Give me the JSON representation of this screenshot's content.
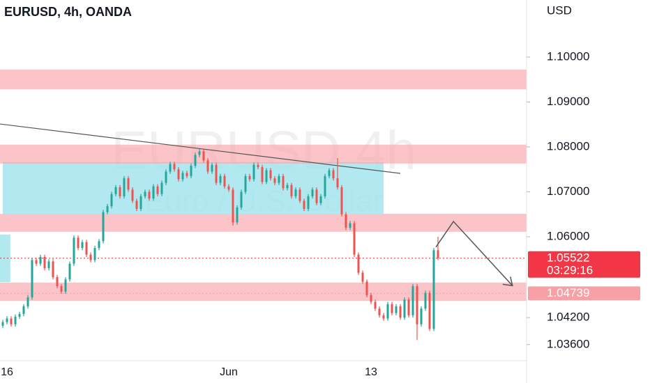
{
  "chart_data": {
    "type": "candlestick",
    "title": "EURUSD, 4h, OANDA",
    "y_label": "USD",
    "watermark": [
      "EURUSD 4h",
      "Euro / U.S. Dollar"
    ],
    "categories": [
      null,
      "16",
      null,
      null,
      null,
      null,
      null,
      null,
      null,
      null,
      null,
      null,
      null,
      null,
      null,
      null,
      null,
      null,
      null,
      null,
      null,
      null,
      null,
      null,
      null,
      null,
      null,
      null,
      null,
      null,
      null,
      null,
      null,
      null,
      null,
      null,
      null,
      null,
      null,
      null,
      null,
      null,
      null,
      null,
      null,
      null,
      null,
      null,
      null,
      null,
      null,
      null,
      null,
      null,
      "Jun",
      null,
      null,
      null,
      null,
      null,
      null,
      null,
      null,
      null,
      null,
      null,
      null,
      null,
      null,
      null,
      null,
      null,
      null,
      null,
      null,
      null,
      null,
      null,
      null,
      null,
      null,
      null,
      null,
      null,
      null,
      null,
      null,
      null,
      "13",
      null,
      null,
      null,
      null,
      null,
      null,
      null,
      null,
      null,
      null,
      null,
      null,
      null,
      null,
      null,
      null
    ],
    "open": [
      1.0402,
      1.041,
      1.0418,
      1.0405,
      1.0422,
      1.0428,
      1.0445,
      1.0465,
      1.0548,
      1.054,
      1.0555,
      1.053,
      1.0545,
      1.051,
      1.049,
      1.0478,
      1.0505,
      1.054,
      1.0598,
      1.0575,
      1.0588,
      1.056,
      1.0548,
      1.0575,
      1.059,
      1.0655,
      1.0668,
      1.0695,
      1.071,
      1.069,
      1.073,
      1.0705,
      1.068,
      1.0662,
      1.069,
      1.07,
      1.0685,
      1.0712,
      1.0695,
      1.072,
      1.0745,
      1.0762,
      1.075,
      1.0728,
      1.0742,
      1.0735,
      1.0758,
      1.0782,
      1.079,
      1.077,
      1.0745,
      1.076,
      1.072,
      1.0735,
      1.0712,
      1.0705,
      1.0632,
      1.0665,
      1.07,
      1.0735,
      1.0728,
      1.076,
      1.0755,
      1.0722,
      1.0748,
      1.073,
      1.072,
      1.0735,
      1.0708,
      1.0715,
      1.069,
      1.0705,
      1.068,
      1.0662,
      1.069,
      1.0705,
      1.0675,
      1.069,
      1.0735,
      1.0748,
      1.073,
      1.071,
      1.065,
      1.062,
      1.063,
      1.056,
      1.052,
      1.05,
      1.047,
      1.0455,
      1.044,
      1.0425,
      1.0418,
      1.045,
      1.043,
      1.0445,
      1.042,
      1.046,
      1.0425,
      1.049,
      1.0405,
      1.044,
      1.0475,
      1.0395,
      1.057
    ],
    "high": [
      1.0415,
      1.0423,
      1.0423,
      1.0427,
      1.0433,
      1.045,
      1.047,
      1.0553,
      1.0553,
      1.056,
      1.056,
      1.055,
      1.055,
      1.0515,
      1.0495,
      1.051,
      1.0545,
      1.0603,
      1.0603,
      1.0593,
      1.0593,
      1.0565,
      1.058,
      1.0595,
      1.066,
      1.0673,
      1.07,
      1.0715,
      1.0715,
      1.0735,
      1.0735,
      1.071,
      1.0685,
      1.0695,
      1.0705,
      1.0705,
      1.0717,
      1.0717,
      1.0725,
      1.075,
      1.0767,
      1.0767,
      1.0755,
      1.0747,
      1.0747,
      1.0763,
      1.0787,
      1.0795,
      1.0795,
      1.0775,
      1.0765,
      1.0765,
      1.074,
      1.074,
      1.0717,
      1.071,
      1.067,
      1.0705,
      1.074,
      1.074,
      1.0765,
      1.0765,
      1.076,
      1.0753,
      1.0753,
      1.0735,
      1.074,
      1.074,
      1.072,
      1.072,
      1.071,
      1.071,
      1.0685,
      1.0695,
      1.071,
      1.071,
      1.0695,
      1.074,
      1.0753,
      1.0753,
      1.0775,
      1.0715,
      1.0655,
      1.0635,
      1.0635,
      1.0565,
      1.0525,
      1.0505,
      1.0475,
      1.046,
      1.0445,
      1.043,
      1.0455,
      1.0455,
      1.045,
      1.045,
      1.0465,
      1.0465,
      1.0495,
      1.0495,
      1.0445,
      1.048,
      1.048,
      1.0575,
      1.06
    ],
    "low": [
      1.0397,
      1.0405,
      1.04,
      1.04,
      1.0417,
      1.0423,
      1.044,
      1.046,
      1.0535,
      1.0535,
      1.0525,
      1.0525,
      1.0505,
      1.0485,
      1.0473,
      1.0473,
      1.05,
      1.0535,
      1.057,
      1.057,
      1.0555,
      1.0543,
      1.0543,
      1.057,
      1.0585,
      1.065,
      1.0663,
      1.069,
      1.0685,
      1.0685,
      1.07,
      1.0675,
      1.0657,
      1.0657,
      1.0685,
      1.068,
      1.068,
      1.069,
      1.069,
      1.0715,
      1.074,
      1.0745,
      1.0723,
      1.0723,
      1.073,
      1.073,
      1.0753,
      1.0777,
      1.0765,
      1.074,
      1.074,
      1.0715,
      1.0715,
      1.0707,
      1.07,
      1.0625,
      1.0627,
      1.066,
      1.0695,
      1.0723,
      1.0723,
      1.075,
      1.0717,
      1.0717,
      1.0725,
      1.0715,
      1.0715,
      1.0703,
      1.0703,
      1.0685,
      1.0685,
      1.0675,
      1.0657,
      1.0657,
      1.0685,
      1.067,
      1.067,
      1.0685,
      1.073,
      1.0725,
      1.0705,
      1.0645,
      1.0615,
      1.0615,
      1.0555,
      1.0515,
      1.0495,
      1.0465,
      1.045,
      1.0435,
      1.042,
      1.0413,
      1.0413,
      1.0425,
      1.0425,
      1.0415,
      1.0415,
      1.042,
      1.042,
      1.037,
      1.04,
      1.0435,
      1.039,
      1.039,
      1.0548
    ],
    "close": [
      1.041,
      1.0418,
      1.0405,
      1.0422,
      1.0428,
      1.0445,
      1.0465,
      1.0548,
      1.054,
      1.0555,
      1.053,
      1.0545,
      1.051,
      1.049,
      1.0478,
      1.0505,
      1.054,
      1.0598,
      1.0575,
      1.0588,
      1.056,
      1.0548,
      1.0575,
      1.059,
      1.0655,
      1.0668,
      1.0695,
      1.071,
      1.069,
      1.073,
      1.0705,
      1.068,
      1.0662,
      1.069,
      1.07,
      1.0685,
      1.0712,
      1.0695,
      1.072,
      1.0745,
      1.0762,
      1.075,
      1.0728,
      1.0742,
      1.0735,
      1.0758,
      1.0782,
      1.079,
      1.077,
      1.0745,
      1.076,
      1.072,
      1.0735,
      1.0712,
      1.0705,
      1.0632,
      1.0665,
      1.07,
      1.0735,
      1.0728,
      1.076,
      1.0755,
      1.0722,
      1.0748,
      1.073,
      1.072,
      1.0735,
      1.0708,
      1.0715,
      1.069,
      1.0705,
      1.068,
      1.0662,
      1.069,
      1.0705,
      1.0675,
      1.069,
      1.0735,
      1.0748,
      1.073,
      1.071,
      1.065,
      1.062,
      1.063,
      1.056,
      1.052,
      1.05,
      1.047,
      1.0455,
      1.044,
      1.0425,
      1.0418,
      1.045,
      1.043,
      1.0445,
      1.042,
      1.046,
      1.0425,
      1.049,
      1.0405,
      1.044,
      1.0475,
      1.0395,
      1.057,
      1.05522
    ],
    "up_color": "#26a69a",
    "down_color": "#ef5350",
    "ylim": [
      1.0324,
      1.1127
    ],
    "yticks": [
      {
        "value": 1.1,
        "label": "1.10000"
      },
      {
        "value": 1.09,
        "label": "1.09000"
      },
      {
        "value": 1.08,
        "label": "1.08000"
      },
      {
        "value": 1.07,
        "label": "1.07000"
      },
      {
        "value": 1.06,
        "label": "1.06000"
      },
      {
        "value": 1.042,
        "label": "1.04200"
      },
      {
        "value": 1.036,
        "label": "1.03600"
      }
    ],
    "zones": [
      {
        "low": 1.0928,
        "high": 1.0972
      },
      {
        "low": 1.0763,
        "high": 1.0805
      },
      {
        "low": 1.0611,
        "high": 1.0651
      },
      {
        "low": 1.0457,
        "high": 1.0498
      }
    ],
    "zone_color": "#f8a4ab",
    "boxes": [
      {
        "start": 0,
        "end": 91,
        "low": 1.0651,
        "high": 1.0766
      },
      {
        "start": -1,
        "end": 1.8,
        "low": 1.0499,
        "high": 1.0605
      }
    ],
    "box_color": "#9fe3ec",
    "trendline": {
      "x": [
        0,
        95
      ],
      "values": [
        1.0851,
        1.0741
      ]
    },
    "projection": {
      "x": [
        103.5,
        107.7,
        121.8
      ],
      "values": [
        1.0577,
        1.0634,
        1.0491
      ]
    },
    "price_labels": [
      {
        "value": 1.05522,
        "label": "1.05522",
        "countdown": "03:29:16",
        "color": "#f23645"
      },
      {
        "value": 1.04739,
        "label": "1.04739",
        "color": "#f7a1a7"
      }
    ]
  }
}
